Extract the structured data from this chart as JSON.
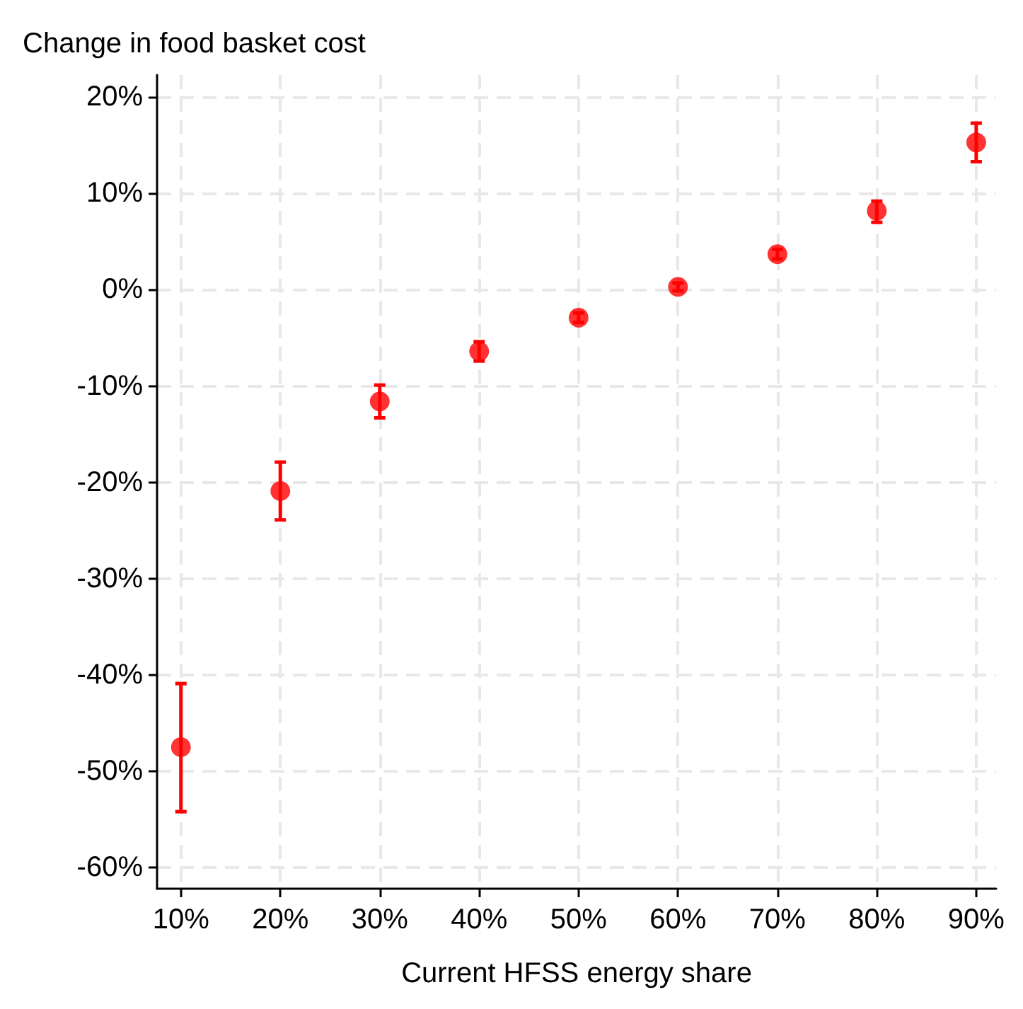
{
  "chart_data": {
    "type": "scatter",
    "ylabel": "Change in food basket cost",
    "xlabel": "Current HFSS energy share",
    "x": [
      10,
      20,
      30,
      40,
      50,
      60,
      70,
      80,
      90
    ],
    "series": [
      {
        "color": "#ff0000",
        "values": [
          -47.5,
          -20.9,
          -11.6,
          -6.4,
          -2.9,
          0.3,
          3.7,
          8.2,
          15.3
        ],
        "errors": [
          [
            -54.2,
            -40.9
          ],
          [
            -23.9,
            -17.9
          ],
          [
            -13.3,
            -9.9
          ],
          [
            -7.4,
            -5.4
          ],
          [
            -3.4,
            -2.4
          ],
          [
            -0.1,
            0.7
          ],
          [
            3.2,
            4.2
          ],
          [
            7.0,
            9.2
          ],
          [
            13.3,
            17.3
          ]
        ]
      }
    ],
    "xlim": [
      7.6,
      92
    ],
    "ylim": [
      -62.2,
      22.3
    ],
    "xticks": [
      {
        "value": 10,
        "label": "10%"
      },
      {
        "value": 20,
        "label": "20%"
      },
      {
        "value": 30,
        "label": "30%"
      },
      {
        "value": 40,
        "label": "40%"
      },
      {
        "value": 50,
        "label": "50%"
      },
      {
        "value": 60,
        "label": "60%"
      },
      {
        "value": 70,
        "label": "70%"
      },
      {
        "value": 80,
        "label": "80%"
      },
      {
        "value": 90,
        "label": "90%"
      }
    ],
    "yticks": [
      {
        "value": -60,
        "label": "-60%"
      },
      {
        "value": -50,
        "label": "-50%"
      },
      {
        "value": -40,
        "label": "-40%"
      },
      {
        "value": -30,
        "label": "-30%"
      },
      {
        "value": -20,
        "label": "-20%"
      },
      {
        "value": -10,
        "label": "-10%"
      },
      {
        "value": 0,
        "label": "0%"
      },
      {
        "value": 10,
        "label": "10%"
      },
      {
        "value": 20,
        "label": "20%"
      }
    ],
    "grid": true,
    "marker": "circle"
  }
}
